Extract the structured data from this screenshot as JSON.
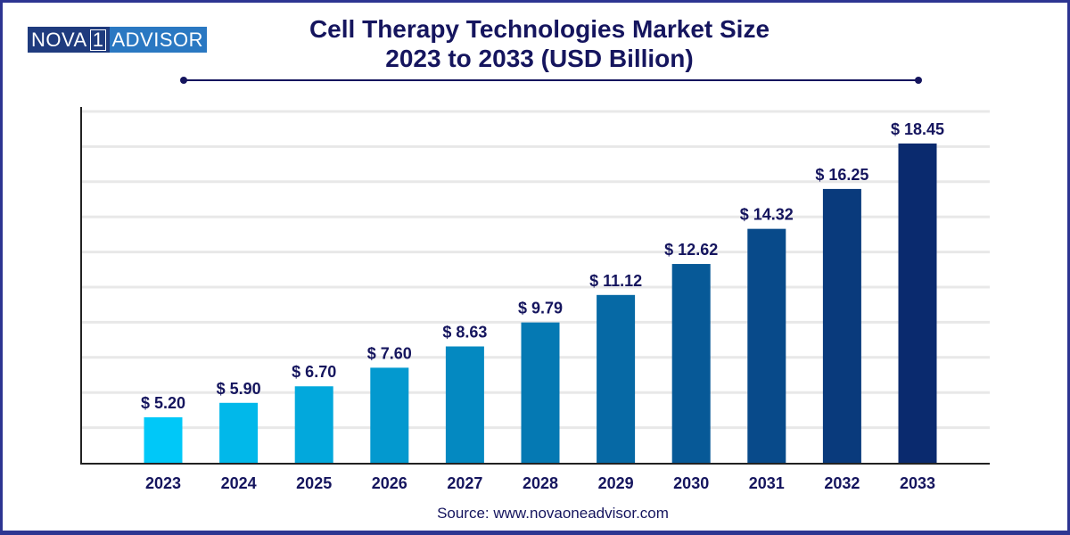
{
  "logo": {
    "part1": "NOVA",
    "part2": "1",
    "part3": "ADVISOR"
  },
  "title_line1": "Cell Therapy Technologies Market Size",
  "title_line2": "2023 to 2033 (USD Billion)",
  "source": "Source: www.novaoneadvisor.com",
  "colors": {
    "title": "#15155e",
    "border": "#2d3591",
    "bar_start": "#00c8f8",
    "bar_end": "#0a2a6e"
  },
  "chart_data": {
    "type": "bar",
    "categories": [
      "2023",
      "2024",
      "2025",
      "2026",
      "2027",
      "2028",
      "2029",
      "2030",
      "2031",
      "2032",
      "2033"
    ],
    "values": [
      5.2,
      5.9,
      6.7,
      7.6,
      8.63,
      9.79,
      11.12,
      12.62,
      14.32,
      16.25,
      18.45
    ],
    "labels": [
      "$ 5.20",
      "$ 5.90",
      "$ 6.70",
      "$ 7.60",
      "$ 8.63",
      "$ 9.79",
      "$ 11.12",
      "$ 12.62",
      "$ 14.32",
      "$ 16.25",
      "$ 18.45"
    ],
    "title": "Cell Therapy Technologies Market Size 2023 to 2033 (USD Billion)",
    "xlabel": "",
    "ylabel": "",
    "ylim": [
      3,
      20
    ],
    "grid": true,
    "legend": "none"
  }
}
